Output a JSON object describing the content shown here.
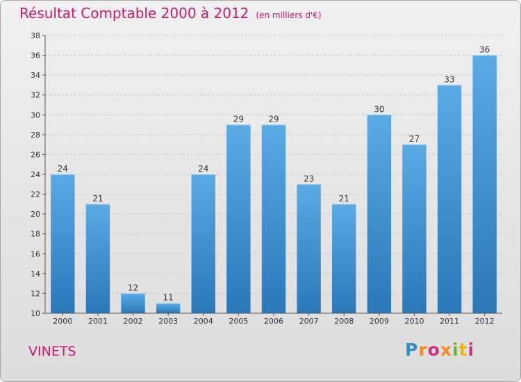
{
  "chart_data": {
    "type": "bar",
    "title": "Résultat Comptable 2000 à 2012",
    "subtitle": "(en milliers d'€)",
    "categories": [
      "2000",
      "2001",
      "2002",
      "2003",
      "2004",
      "2005",
      "2006",
      "2007",
      "2008",
      "2009",
      "2010",
      "2011",
      "2012"
    ],
    "values": [
      24,
      21,
      12,
      11,
      24,
      29,
      29,
      23,
      21,
      30,
      27,
      33,
      36
    ],
    "ylim": [
      10,
      38
    ],
    "yticks": [
      10,
      12,
      14,
      16,
      18,
      20,
      22,
      24,
      26,
      28,
      30,
      32,
      34,
      36,
      38
    ],
    "xlabel": "",
    "ylabel": "",
    "grid": true,
    "bar_color_top": "#5aaae6",
    "bar_color_bottom": "#2a78b8"
  },
  "footer": {
    "town": "VINETS",
    "logo": "Proxiti"
  }
}
